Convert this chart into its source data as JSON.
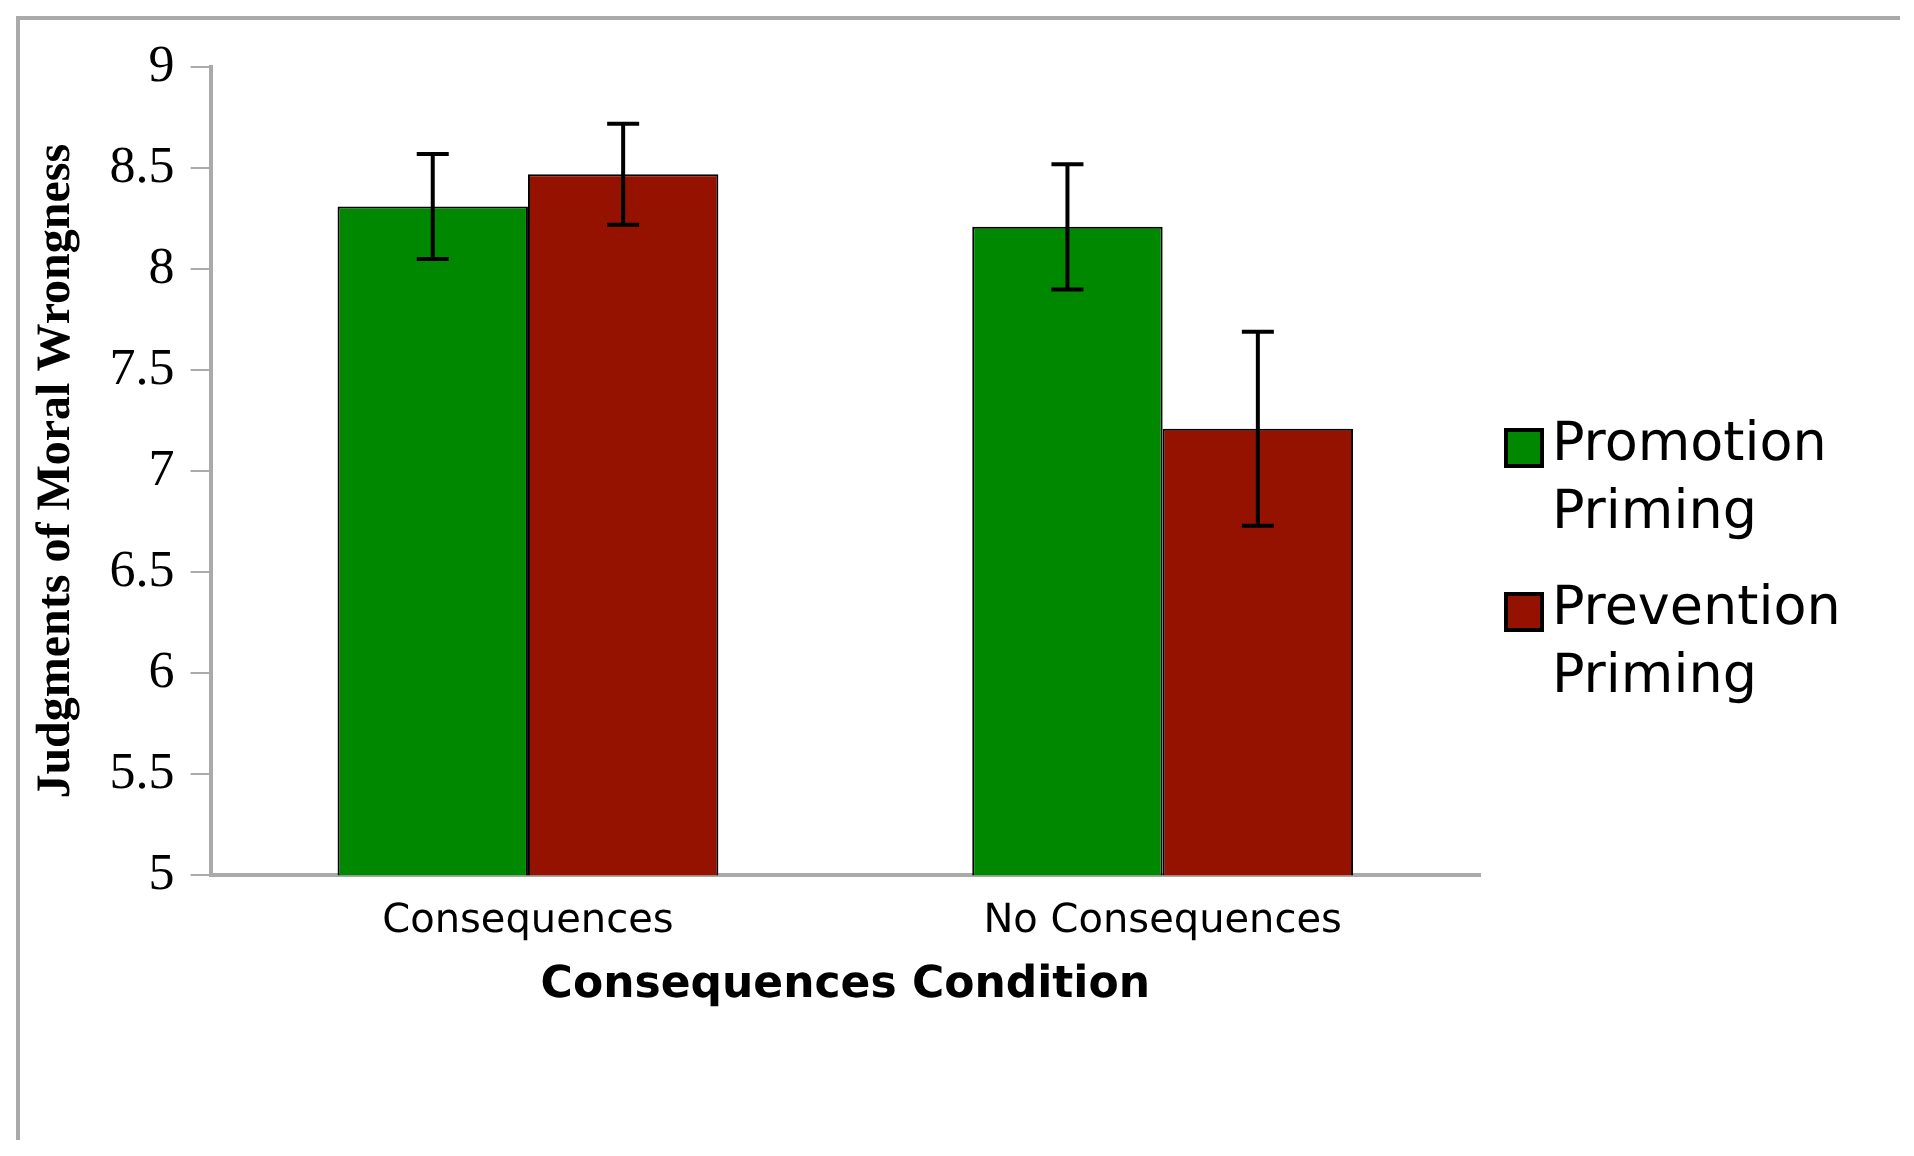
{
  "chart_data": {
    "type": "bar",
    "xlabel": "Consequences Condition",
    "ylabel": "Judgments of Moral Wrongness",
    "categories": [
      "Consequences",
      "No Consequences"
    ],
    "series": [
      {
        "name": "Promotion Priming",
        "color": "#008800",
        "values": [
          8.31,
          8.21
        ],
        "errors": [
          0.26,
          0.31
        ]
      },
      {
        "name": "Prevention Priming",
        "color": "#951200",
        "values": [
          8.47,
          7.21
        ],
        "errors": [
          0.25,
          0.48
        ]
      }
    ],
    "ylim": [
      5,
      9
    ],
    "yticks": [
      5,
      5.5,
      6,
      6.5,
      7,
      7.5,
      8,
      8.5,
      9
    ],
    "grid": false,
    "legend": "right"
  }
}
